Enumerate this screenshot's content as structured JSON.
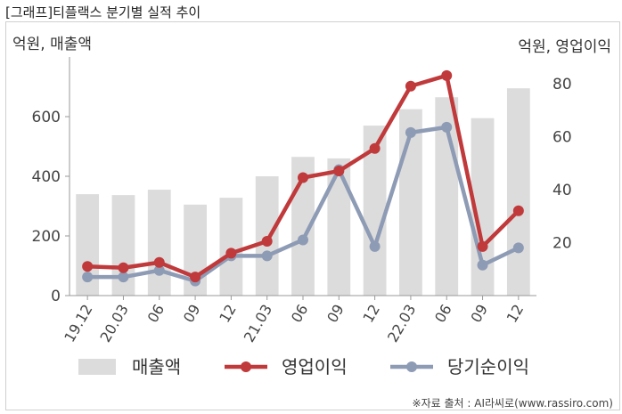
{
  "title": "[그래프]티플랙스 분기별 실적 추이",
  "source": "※자료 출처 : AI라씨로(www.rassiro.com)",
  "colors": {
    "bar": "#dcdcdc",
    "op": "#c0393b",
    "net": "#8e9bb5",
    "axis": "#999999"
  },
  "chart_data": {
    "type": "bar+line",
    "categories": [
      "19.12",
      "20.03",
      "06",
      "09",
      "12",
      "21.03",
      "06",
      "09",
      "12",
      "22.03",
      "06",
      "09",
      "12"
    ],
    "ylabel_left": "억원, 매출액",
    "ylabel_right": "억원, 영업이익",
    "ylim_left": [
      0,
      800
    ],
    "yticks_left": [
      0,
      200,
      400,
      600
    ],
    "ylim_right": [
      0,
      90
    ],
    "yticks_right": [
      20,
      40,
      60,
      80
    ],
    "series": [
      {
        "name": "매출액",
        "type": "bar",
        "axis": "left",
        "values": [
          340,
          337,
          355,
          305,
          328,
          400,
          465,
          460,
          570,
          625,
          665,
          595,
          695
        ]
      },
      {
        "name": "영업이익",
        "type": "line",
        "axis": "right",
        "values": [
          11,
          10.5,
          12.5,
          7,
          16,
          20.5,
          44.5,
          47,
          55.5,
          79,
          83,
          18.5,
          32
        ]
      },
      {
        "name": "당기순이익",
        "type": "line",
        "axis": "right",
        "values": [
          7,
          7,
          9.5,
          5.5,
          15,
          15,
          21,
          47.5,
          18.5,
          61.5,
          63.5,
          11.5,
          18
        ]
      }
    ],
    "legend": "bottom",
    "grid": false
  }
}
